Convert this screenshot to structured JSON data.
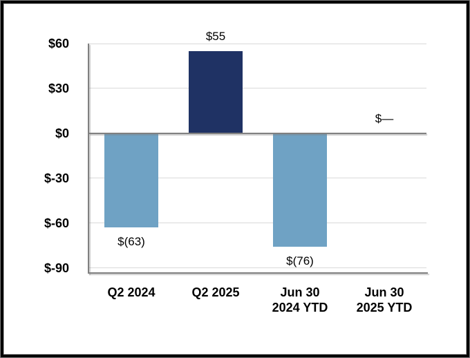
{
  "chart_data": {
    "type": "bar",
    "categories": [
      "Q2 2024",
      "Q2 2025",
      "Jun 30\n2024 YTD",
      "Jun 30\n2025 YTD"
    ],
    "values": [
      -63,
      55,
      -76,
      0
    ],
    "value_labels": [
      "$(63)",
      "$55",
      "$(76)",
      "$—"
    ],
    "bar_colors": [
      "#6FA2C4",
      "#1F3264",
      "#6FA2C4",
      null
    ],
    "title": "",
    "xlabel": "",
    "ylabel": "",
    "ylim": [
      -93,
      60
    ],
    "yticks": [
      60,
      30,
      0,
      -30,
      -60,
      -90
    ],
    "ytick_labels": [
      "$60",
      "$30",
      "$0",
      "$-30",
      "$-60",
      "$-90"
    ],
    "grid": true,
    "legend": false
  },
  "colors": {
    "bar_negative": "#6FA2C4",
    "bar_positive": "#1F3264",
    "gridline": "#D9D9D9",
    "axis_line": "#808080",
    "text": "#000000",
    "frame": "#000000",
    "background": "#FFFFFF"
  }
}
